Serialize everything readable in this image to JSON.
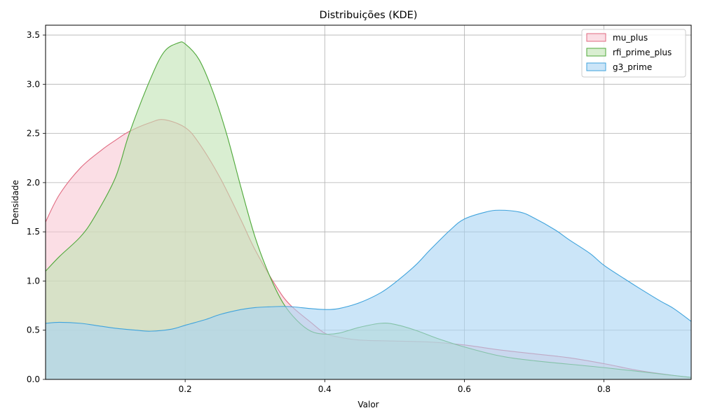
{
  "chart_data": {
    "type": "area",
    "title": "Distribuições (KDE)",
    "xlabel": "Valor",
    "ylabel": "Densidade",
    "xlim": [
      0.0,
      0.925
    ],
    "ylim": [
      0,
      3.6
    ],
    "xticks": [
      0.2,
      0.4,
      0.6,
      0.8
    ],
    "xtick_labels": [
      "0.2",
      "0.4",
      "0.6",
      "0.8"
    ],
    "yticks": [
      0,
      0.5,
      1.0,
      1.5,
      2.0,
      2.5,
      3.0,
      3.5
    ],
    "ytick_labels": [
      "0.0",
      "0.5",
      "1.0",
      "1.5",
      "2.0",
      "2.5",
      "3.0",
      "3.5"
    ],
    "grid": true,
    "legend_position": "top-right",
    "series": [
      {
        "name": "mu_plus",
        "color": "#e06a80",
        "fill": "#f9c8d3",
        "x": [
          0.0,
          0.02,
          0.05,
          0.08,
          0.1,
          0.12,
          0.15,
          0.17,
          0.2,
          0.22,
          0.25,
          0.28,
          0.3,
          0.33,
          0.35,
          0.38,
          0.4,
          0.42,
          0.45,
          0.5,
          0.55,
          0.6,
          0.65,
          0.7,
          0.75,
          0.8,
          0.85,
          0.9,
          0.925
        ],
        "values": [
          1.6,
          1.88,
          2.15,
          2.33,
          2.43,
          2.52,
          2.61,
          2.64,
          2.56,
          2.4,
          2.05,
          1.62,
          1.32,
          0.95,
          0.76,
          0.58,
          0.47,
          0.43,
          0.4,
          0.39,
          0.38,
          0.35,
          0.3,
          0.26,
          0.22,
          0.16,
          0.09,
          0.04,
          0.02
        ]
      },
      {
        "name": "rfi_prime_plus",
        "color": "#4fa83a",
        "fill": "#bfe3b2",
        "x": [
          0.0,
          0.02,
          0.05,
          0.07,
          0.1,
          0.12,
          0.15,
          0.17,
          0.19,
          0.2,
          0.22,
          0.24,
          0.26,
          0.28,
          0.3,
          0.32,
          0.34,
          0.36,
          0.38,
          0.4,
          0.42,
          0.45,
          0.48,
          0.5,
          0.53,
          0.56,
          0.6,
          0.65,
          0.7,
          0.8,
          0.9,
          0.925
        ],
        "values": [
          1.1,
          1.25,
          1.45,
          1.65,
          2.05,
          2.5,
          3.05,
          3.33,
          3.42,
          3.41,
          3.25,
          2.92,
          2.48,
          1.95,
          1.45,
          1.07,
          0.78,
          0.6,
          0.49,
          0.46,
          0.47,
          0.53,
          0.57,
          0.56,
          0.5,
          0.42,
          0.33,
          0.24,
          0.19,
          0.12,
          0.04,
          0.02
        ]
      },
      {
        "name": "g3_prime",
        "color": "#3fa3dc",
        "fill": "#a9d3f3",
        "x": [
          0.0,
          0.02,
          0.05,
          0.08,
          0.1,
          0.13,
          0.15,
          0.18,
          0.2,
          0.23,
          0.25,
          0.28,
          0.3,
          0.33,
          0.35,
          0.38,
          0.4,
          0.42,
          0.45,
          0.48,
          0.5,
          0.53,
          0.55,
          0.58,
          0.6,
          0.63,
          0.65,
          0.68,
          0.7,
          0.73,
          0.75,
          0.78,
          0.8,
          0.83,
          0.85,
          0.88,
          0.9,
          0.925
        ],
        "values": [
          0.57,
          0.58,
          0.57,
          0.54,
          0.52,
          0.5,
          0.49,
          0.51,
          0.55,
          0.61,
          0.66,
          0.71,
          0.73,
          0.74,
          0.74,
          0.72,
          0.71,
          0.72,
          0.78,
          0.88,
          0.98,
          1.16,
          1.31,
          1.52,
          1.63,
          1.7,
          1.72,
          1.7,
          1.64,
          1.52,
          1.42,
          1.28,
          1.16,
          1.02,
          0.93,
          0.8,
          0.72,
          0.59
        ]
      }
    ]
  }
}
